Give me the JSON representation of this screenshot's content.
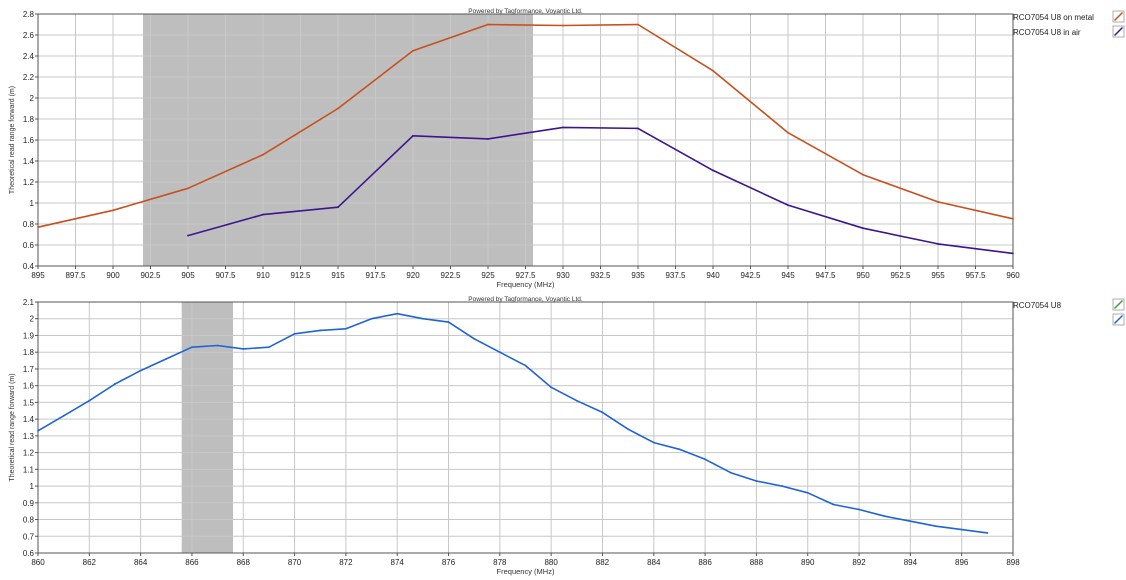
{
  "chart_data": [
    {
      "type": "line",
      "title": "Powered by Tagformance, Voyantic Ltd.",
      "xlabel": "Frequency (MHz)",
      "ylabel": "Theoretical read range forward (m)",
      "xlim": [
        895,
        960
      ],
      "ylim": [
        0.4,
        2.8
      ],
      "xticks": [
        895,
        897.5,
        900,
        902.5,
        905,
        907.5,
        910,
        912.5,
        915,
        917.5,
        920,
        922.5,
        925,
        927.5,
        930,
        932.5,
        935,
        937.5,
        940,
        942.5,
        945,
        947.5,
        950,
        952.5,
        955,
        957.5,
        960
      ],
      "yticks": [
        0.4,
        0.6,
        0.8,
        1,
        1.2,
        1.4,
        1.6,
        1.8,
        2,
        2.2,
        2.4,
        2.6,
        2.8
      ],
      "grid": true,
      "legend": "right",
      "shaded_band": [
        902,
        928
      ],
      "series": [
        {
          "name": "RCO7054 U8 on metal",
          "color": "#c8501c",
          "x": [
            895,
            900,
            905,
            910,
            915,
            920,
            925,
            930,
            935,
            940,
            945,
            950,
            955,
            960
          ],
          "y": [
            0.77,
            0.93,
            1.14,
            1.46,
            1.9,
            2.45,
            2.7,
            2.69,
            2.7,
            2.26,
            1.67,
            1.27,
            1.01,
            0.85
          ]
        },
        {
          "name": "RCO7054 U8 in air",
          "color": "#3a1690",
          "x": [
            905,
            910,
            915,
            920,
            925,
            930,
            935,
            940,
            945,
            950,
            955,
            960
          ],
          "y": [
            0.69,
            0.89,
            0.96,
            1.64,
            1.61,
            1.72,
            1.71,
            1.31,
            0.98,
            0.76,
            0.61,
            0.52
          ]
        }
      ]
    },
    {
      "type": "line",
      "title": "Powered by Tagformance, Voyantic Ltd.",
      "xlabel": "Frequency (MHz)",
      "ylabel": "Theoretical read range forward (m)",
      "xlim": [
        860,
        898
      ],
      "ylim": [
        0.6,
        2.1
      ],
      "xticks": [
        860,
        862,
        864,
        866,
        868,
        870,
        872,
        874,
        876,
        878,
        880,
        882,
        884,
        886,
        888,
        890,
        892,
        894,
        896,
        898
      ],
      "yticks": [
        0.6,
        0.7,
        0.8,
        0.9,
        1,
        1.1,
        1.2,
        1.3,
        1.4,
        1.5,
        1.6,
        1.7,
        1.8,
        1.9,
        2,
        2.1
      ],
      "grid": true,
      "legend": "right",
      "shaded_band": [
        865.6,
        867.6
      ],
      "legend_swatch_colors": [
        "#3c9a3c",
        "#1e64d6"
      ],
      "series": [
        {
          "name": "RCO7054 U8",
          "color": "#1e64d6",
          "x": [
            860,
            861,
            862,
            863,
            864,
            865,
            866,
            867,
            868,
            869,
            870,
            871,
            872,
            873,
            874,
            875,
            876,
            877,
            878,
            879,
            880,
            881,
            882,
            883,
            884,
            885,
            886,
            887,
            888,
            889,
            890,
            891,
            892,
            893,
            894,
            895,
            896,
            897
          ],
          "y": [
            1.33,
            1.42,
            1.51,
            1.61,
            1.69,
            1.76,
            1.83,
            1.84,
            1.82,
            1.83,
            1.91,
            1.93,
            1.94,
            2.0,
            2.03,
            2.0,
            1.98,
            1.88,
            1.8,
            1.72,
            1.59,
            1.51,
            1.44,
            1.34,
            1.26,
            1.22,
            1.16,
            1.08,
            1.03,
            1.0,
            0.96,
            0.89,
            0.86,
            0.82,
            0.79,
            0.76,
            0.74,
            0.72
          ]
        }
      ]
    }
  ]
}
